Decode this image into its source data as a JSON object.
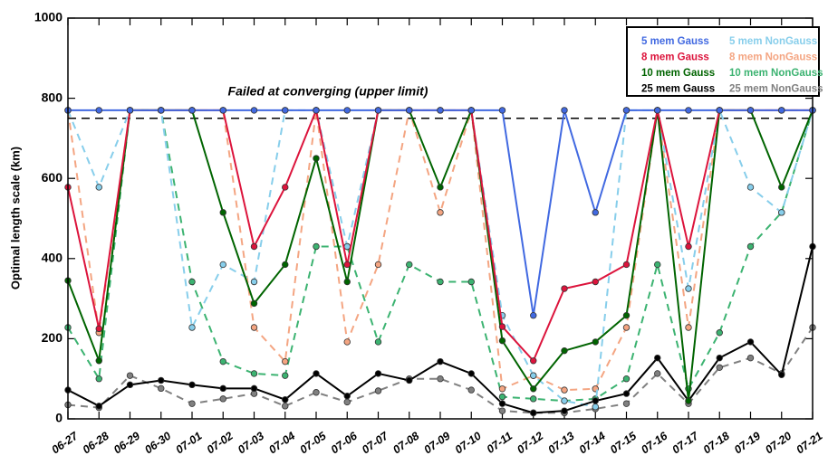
{
  "chart_data": {
    "type": "line",
    "ylabel": "Optimal length scale (km)",
    "annotation": "Failed at converging (upper limit)",
    "hline": 750,
    "categories": [
      "06-27",
      "06-28",
      "06-29",
      "06-30",
      "07-01",
      "07-02",
      "07-03",
      "07-04",
      "07-05",
      "07-06",
      "07-07",
      "07-08",
      "07-09",
      "07-10",
      "07-11",
      "07-12",
      "07-13",
      "07-14",
      "07-15",
      "07-16",
      "07-17",
      "07-18",
      "07-19",
      "07-20",
      "07-21"
    ],
    "ylim": [
      0,
      1000
    ],
    "yticks": [
      0,
      200,
      400,
      600,
      800,
      1000
    ],
    "series": [
      {
        "name": "5 mem Gauss",
        "color": "#4169e1",
        "linestyle": "solid",
        "values": [
          770,
          770,
          770,
          770,
          770,
          770,
          770,
          770,
          770,
          770,
          770,
          770,
          770,
          770,
          770,
          258,
          770,
          515,
          770,
          770,
          770,
          770,
          770,
          770,
          770
        ]
      },
      {
        "name": "8 mem Gauss",
        "color": "#dc143c",
        "linestyle": "solid",
        "values": [
          578,
          225,
          770,
          770,
          770,
          770,
          430,
          578,
          770,
          385,
          770,
          770,
          770,
          770,
          230,
          145,
          325,
          342,
          385,
          770,
          430,
          770,
          770,
          770,
          770
        ]
      },
      {
        "name": "10 mem Gauss",
        "color": "#006400",
        "linestyle": "solid",
        "values": [
          345,
          145,
          770,
          770,
          770,
          515,
          288,
          385,
          650,
          342,
          770,
          770,
          578,
          770,
          195,
          75,
          170,
          192,
          258,
          770,
          45,
          770,
          770,
          578,
          770
        ]
      },
      {
        "name": "25 mem Gauss",
        "color": "#000000",
        "linestyle": "solid",
        "values": [
          72,
          32,
          85,
          96,
          85,
          76,
          76,
          48,
          113,
          57,
          113,
          96,
          143,
          113,
          38,
          15,
          20,
          45,
          63,
          152,
          45,
          152,
          192,
          110,
          430
        ]
      },
      {
        "name": "5 mem NonGauss",
        "color": "#87ceeb",
        "linestyle": "dashed",
        "values": [
          770,
          578,
          770,
          770,
          228,
          385,
          342,
          770,
          770,
          430,
          770,
          770,
          770,
          770,
          258,
          108,
          45,
          30,
          770,
          770,
          325,
          770,
          578,
          515,
          770
        ]
      },
      {
        "name": "8 mem NonGauss",
        "color": "#f4a582",
        "linestyle": "dashed",
        "values": [
          770,
          215,
          770,
          770,
          770,
          770,
          228,
          143,
          770,
          192,
          385,
          770,
          515,
          770,
          75,
          108,
          72,
          75,
          228,
          770,
          228,
          770,
          770,
          770,
          770
        ]
      },
      {
        "name": "10 mem NonGauss",
        "color": "#3cb371",
        "linestyle": "dashed",
        "values": [
          228,
          100,
          770,
          770,
          342,
          143,
          113,
          108,
          430,
          430,
          192,
          385,
          342,
          342,
          55,
          50,
          45,
          50,
          100,
          385,
          75,
          215,
          430,
          515,
          770
        ]
      },
      {
        "name": "25 mem NonGauss",
        "color": "#808080",
        "linestyle": "dashed",
        "values": [
          35,
          28,
          108,
          76,
          38,
          50,
          63,
          32,
          66,
          42,
          70,
          100,
          100,
          72,
          20,
          15,
          15,
          25,
          38,
          113,
          38,
          128,
          152,
          113,
          228
        ]
      }
    ]
  }
}
